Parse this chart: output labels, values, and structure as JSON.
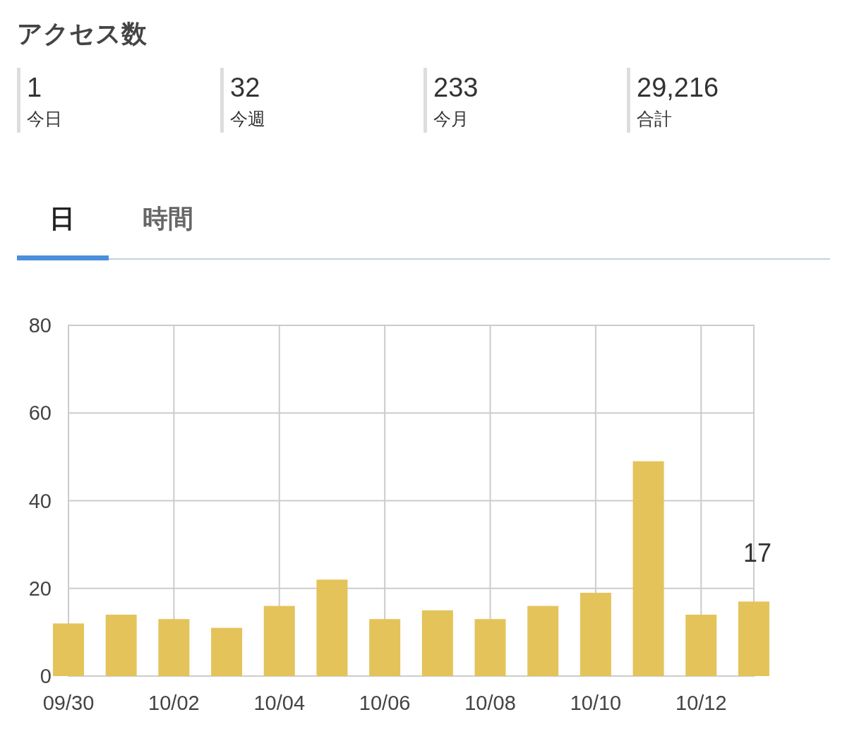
{
  "chart_data": [
    {
      "type": "other",
      "title": "アクセス数",
      "categories": [
        "今日",
        "今週",
        "今月",
        "合計"
      ],
      "value_labels": [
        "1",
        "32",
        "233",
        "29,216"
      ]
    },
    {
      "type": "bar",
      "annotations": [
        "日",
        "時間"
      ],
      "categories": [
        "09/30",
        null,
        "10/02",
        null,
        "10/04",
        null,
        "10/06",
        null,
        "10/08",
        null,
        "10/10",
        null,
        "10/12",
        null
      ],
      "values": [
        12,
        14,
        13,
        11,
        16,
        22,
        13,
        15,
        13,
        16,
        19,
        49,
        14,
        17
      ],
      "value_labels": [
        null,
        null,
        null,
        null,
        null,
        null,
        null,
        null,
        null,
        null,
        null,
        null,
        null,
        "17"
      ],
      "color": "#e4c35a",
      "ylim": [
        0,
        80
      ],
      "yticks": [
        0,
        20,
        40,
        60,
        80
      ],
      "grid": true
    }
  ]
}
